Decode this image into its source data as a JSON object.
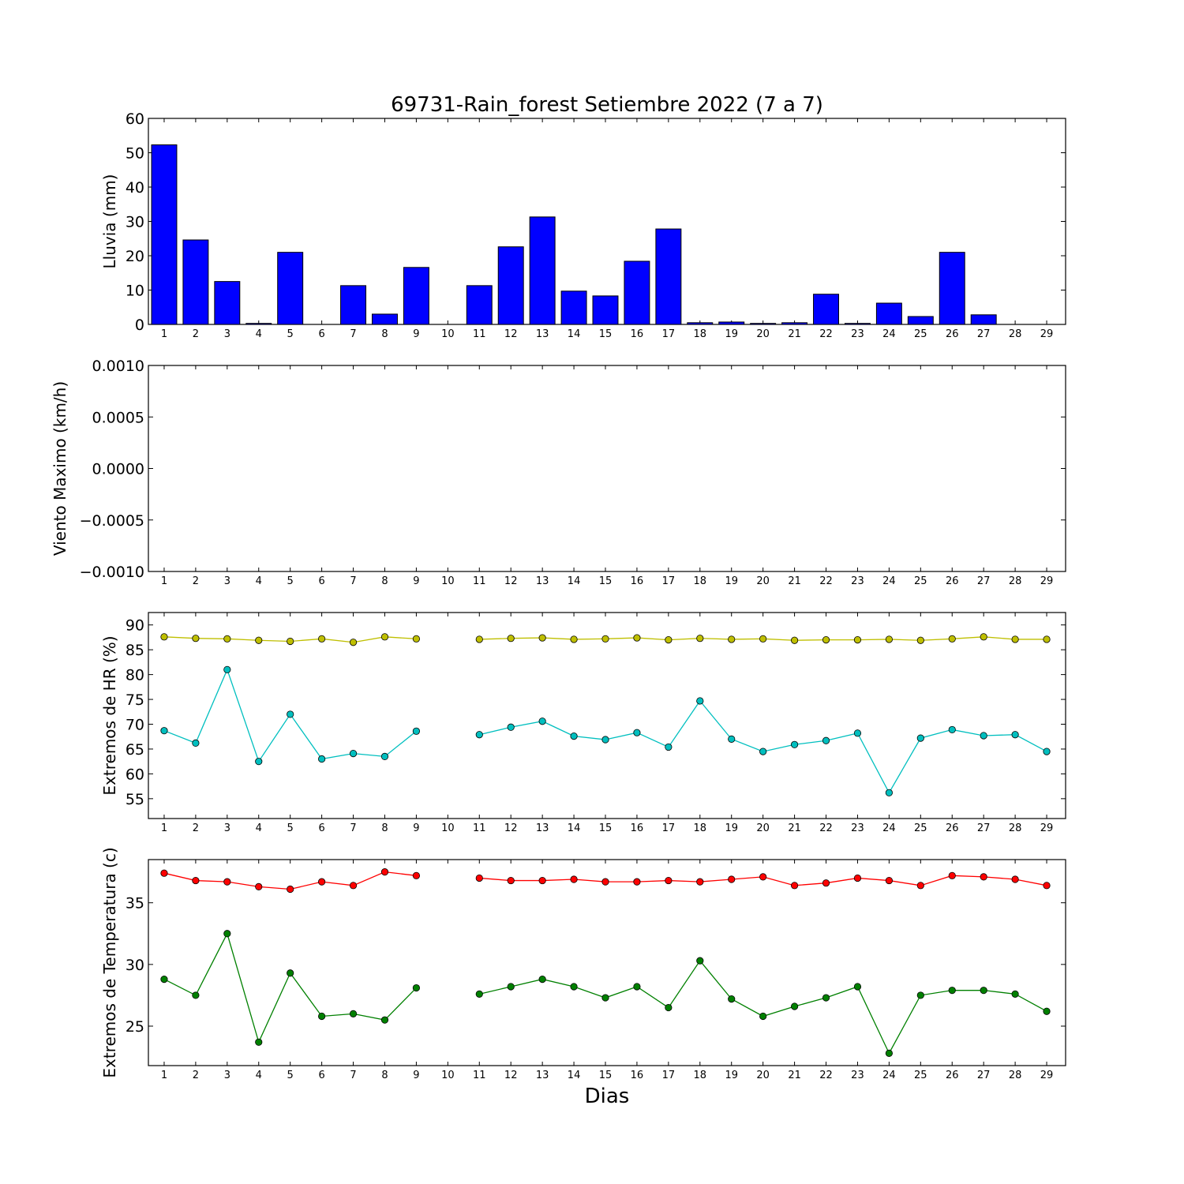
{
  "chart_data": {
    "title": "69731-Rain_forest Setiembre 2022  (7 a 7)",
    "xlabel": "Dias",
    "days": [
      1,
      2,
      3,
      4,
      5,
      6,
      7,
      8,
      9,
      10,
      11,
      12,
      13,
      14,
      15,
      16,
      17,
      18,
      19,
      20,
      21,
      22,
      23,
      24,
      25,
      26,
      27,
      28,
      29
    ],
    "panels": [
      {
        "type": "bar",
        "ylabel": "Lluvia (mm)",
        "ylim": [
          0,
          60
        ],
        "yticks": [
          "0",
          "10",
          "20",
          "30",
          "40",
          "50",
          "60"
        ],
        "series": [
          {
            "color": "#0000ff",
            "values": [
              52.3,
              24.6,
              12.5,
              0.3,
              21.0,
              0,
              11.3,
              3.0,
              16.6,
              0,
              11.3,
              22.6,
              31.3,
              9.7,
              8.3,
              18.4,
              27.8,
              0.5,
              0.7,
              0.3,
              0.5,
              8.8,
              0.3,
              6.2,
              2.3,
              21.0,
              2.8,
              0,
              0
            ]
          }
        ]
      },
      {
        "type": "line",
        "ylabel": "Viento Maximo (km/h)",
        "ylim": [
          -0.001,
          0.001
        ],
        "yticks": [
          "−0.0010",
          "−0.0005",
          "0.0000",
          "0.0005",
          "0.0010"
        ],
        "series": []
      },
      {
        "type": "line",
        "ylabel": "Extremos de HR (%)",
        "ylim": [
          51,
          92.5
        ],
        "yticks": [
          "55",
          "60",
          "65",
          "70",
          "75",
          "80",
          "85",
          "90"
        ],
        "series": [
          {
            "color": "#bfbf00",
            "values": [
              87.6,
              87.3,
              87.2,
              86.9,
              86.7,
              87.2,
              86.5,
              87.6,
              87.2,
              null,
              87.1,
              87.3,
              87.4,
              87.1,
              87.2,
              87.4,
              87.0,
              87.3,
              87.1,
              87.2,
              86.9,
              87.0,
              87.0,
              87.1,
              86.9,
              87.2,
              87.6,
              87.1,
              87.1
            ]
          },
          {
            "color": "#00bfbf",
            "values": [
              68.7,
              66.2,
              81.0,
              62.5,
              72.0,
              63.0,
              64.1,
              63.5,
              68.6,
              null,
              67.9,
              69.4,
              70.6,
              67.6,
              66.9,
              68.3,
              65.4,
              74.7,
              67.0,
              64.5,
              65.9,
              66.7,
              68.2,
              56.2,
              67.2,
              68.9,
              67.7,
              67.9,
              64.5
            ]
          }
        ]
      },
      {
        "type": "line",
        "ylabel": "Extremos de Temperatura (c)",
        "ylim": [
          21.8,
          38.5
        ],
        "yticks": [
          "25",
          "30",
          "35"
        ],
        "series": [
          {
            "color": "#ff0000",
            "values": [
              37.4,
              36.8,
              36.7,
              36.3,
              36.1,
              36.7,
              36.4,
              37.5,
              37.2,
              null,
              37.0,
              36.8,
              36.8,
              36.9,
              36.7,
              36.7,
              36.8,
              36.7,
              36.9,
              37.1,
              36.4,
              36.6,
              37.0,
              36.8,
              36.4,
              37.2,
              37.1,
              36.9,
              36.4
            ]
          },
          {
            "color": "#008000",
            "values": [
              28.8,
              27.5,
              32.5,
              23.7,
              29.3,
              25.8,
              26.0,
              25.5,
              28.1,
              null,
              27.6,
              28.2,
              28.8,
              28.2,
              27.3,
              28.2,
              26.5,
              30.3,
              27.2,
              25.8,
              26.6,
              27.3,
              28.2,
              22.8,
              27.5,
              27.9,
              27.9,
              27.6,
              26.2
            ]
          }
        ]
      }
    ]
  }
}
